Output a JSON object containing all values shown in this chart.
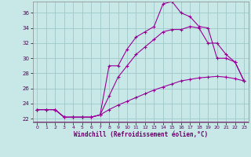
{
  "xlabel": "Windchill (Refroidissement éolien,°C)",
  "bg_color": "#c8e8e8",
  "grid_color": "#a0c8c8",
  "line_color": "#990099",
  "xlim": [
    -0.5,
    23.5
  ],
  "ylim": [
    21.5,
    37.5
  ],
  "yticks": [
    22,
    24,
    26,
    28,
    30,
    32,
    34,
    36
  ],
  "xticks": [
    0,
    1,
    2,
    3,
    4,
    5,
    6,
    7,
    8,
    9,
    10,
    11,
    12,
    13,
    14,
    15,
    16,
    17,
    18,
    19,
    20,
    21,
    22,
    23
  ],
  "series1_x": [
    0,
    1,
    2,
    3,
    4,
    5,
    6,
    7,
    8,
    9,
    10,
    11,
    12,
    13,
    14,
    15,
    16,
    17,
    18,
    19,
    20,
    21,
    22,
    23
  ],
  "series1_y": [
    23.2,
    23.2,
    23.2,
    22.2,
    22.2,
    22.2,
    22.2,
    22.5,
    29.0,
    29.0,
    31.2,
    32.8,
    33.5,
    34.2,
    37.2,
    37.5,
    36.0,
    35.5,
    34.2,
    34.0,
    30.0,
    30.0,
    29.5,
    27.0
  ],
  "series2_x": [
    0,
    1,
    2,
    3,
    4,
    5,
    6,
    7,
    8,
    9,
    10,
    11,
    12,
    13,
    14,
    15,
    16,
    17,
    18,
    19,
    20,
    21,
    22,
    23
  ],
  "series2_y": [
    23.2,
    23.2,
    23.2,
    22.2,
    22.2,
    22.2,
    22.2,
    22.5,
    25.0,
    27.5,
    29.0,
    30.5,
    31.5,
    32.5,
    33.5,
    33.8,
    33.8,
    34.2,
    34.0,
    32.0,
    32.0,
    30.5,
    29.5,
    27.0
  ],
  "series3_x": [
    0,
    1,
    2,
    3,
    4,
    5,
    6,
    7,
    8,
    9,
    10,
    11,
    12,
    13,
    14,
    15,
    16,
    17,
    18,
    19,
    20,
    21,
    22,
    23
  ],
  "series3_y": [
    23.2,
    23.2,
    23.2,
    22.2,
    22.2,
    22.2,
    22.2,
    22.5,
    23.2,
    23.8,
    24.3,
    24.8,
    25.3,
    25.8,
    26.2,
    26.6,
    27.0,
    27.2,
    27.4,
    27.5,
    27.6,
    27.5,
    27.3,
    27.0
  ]
}
